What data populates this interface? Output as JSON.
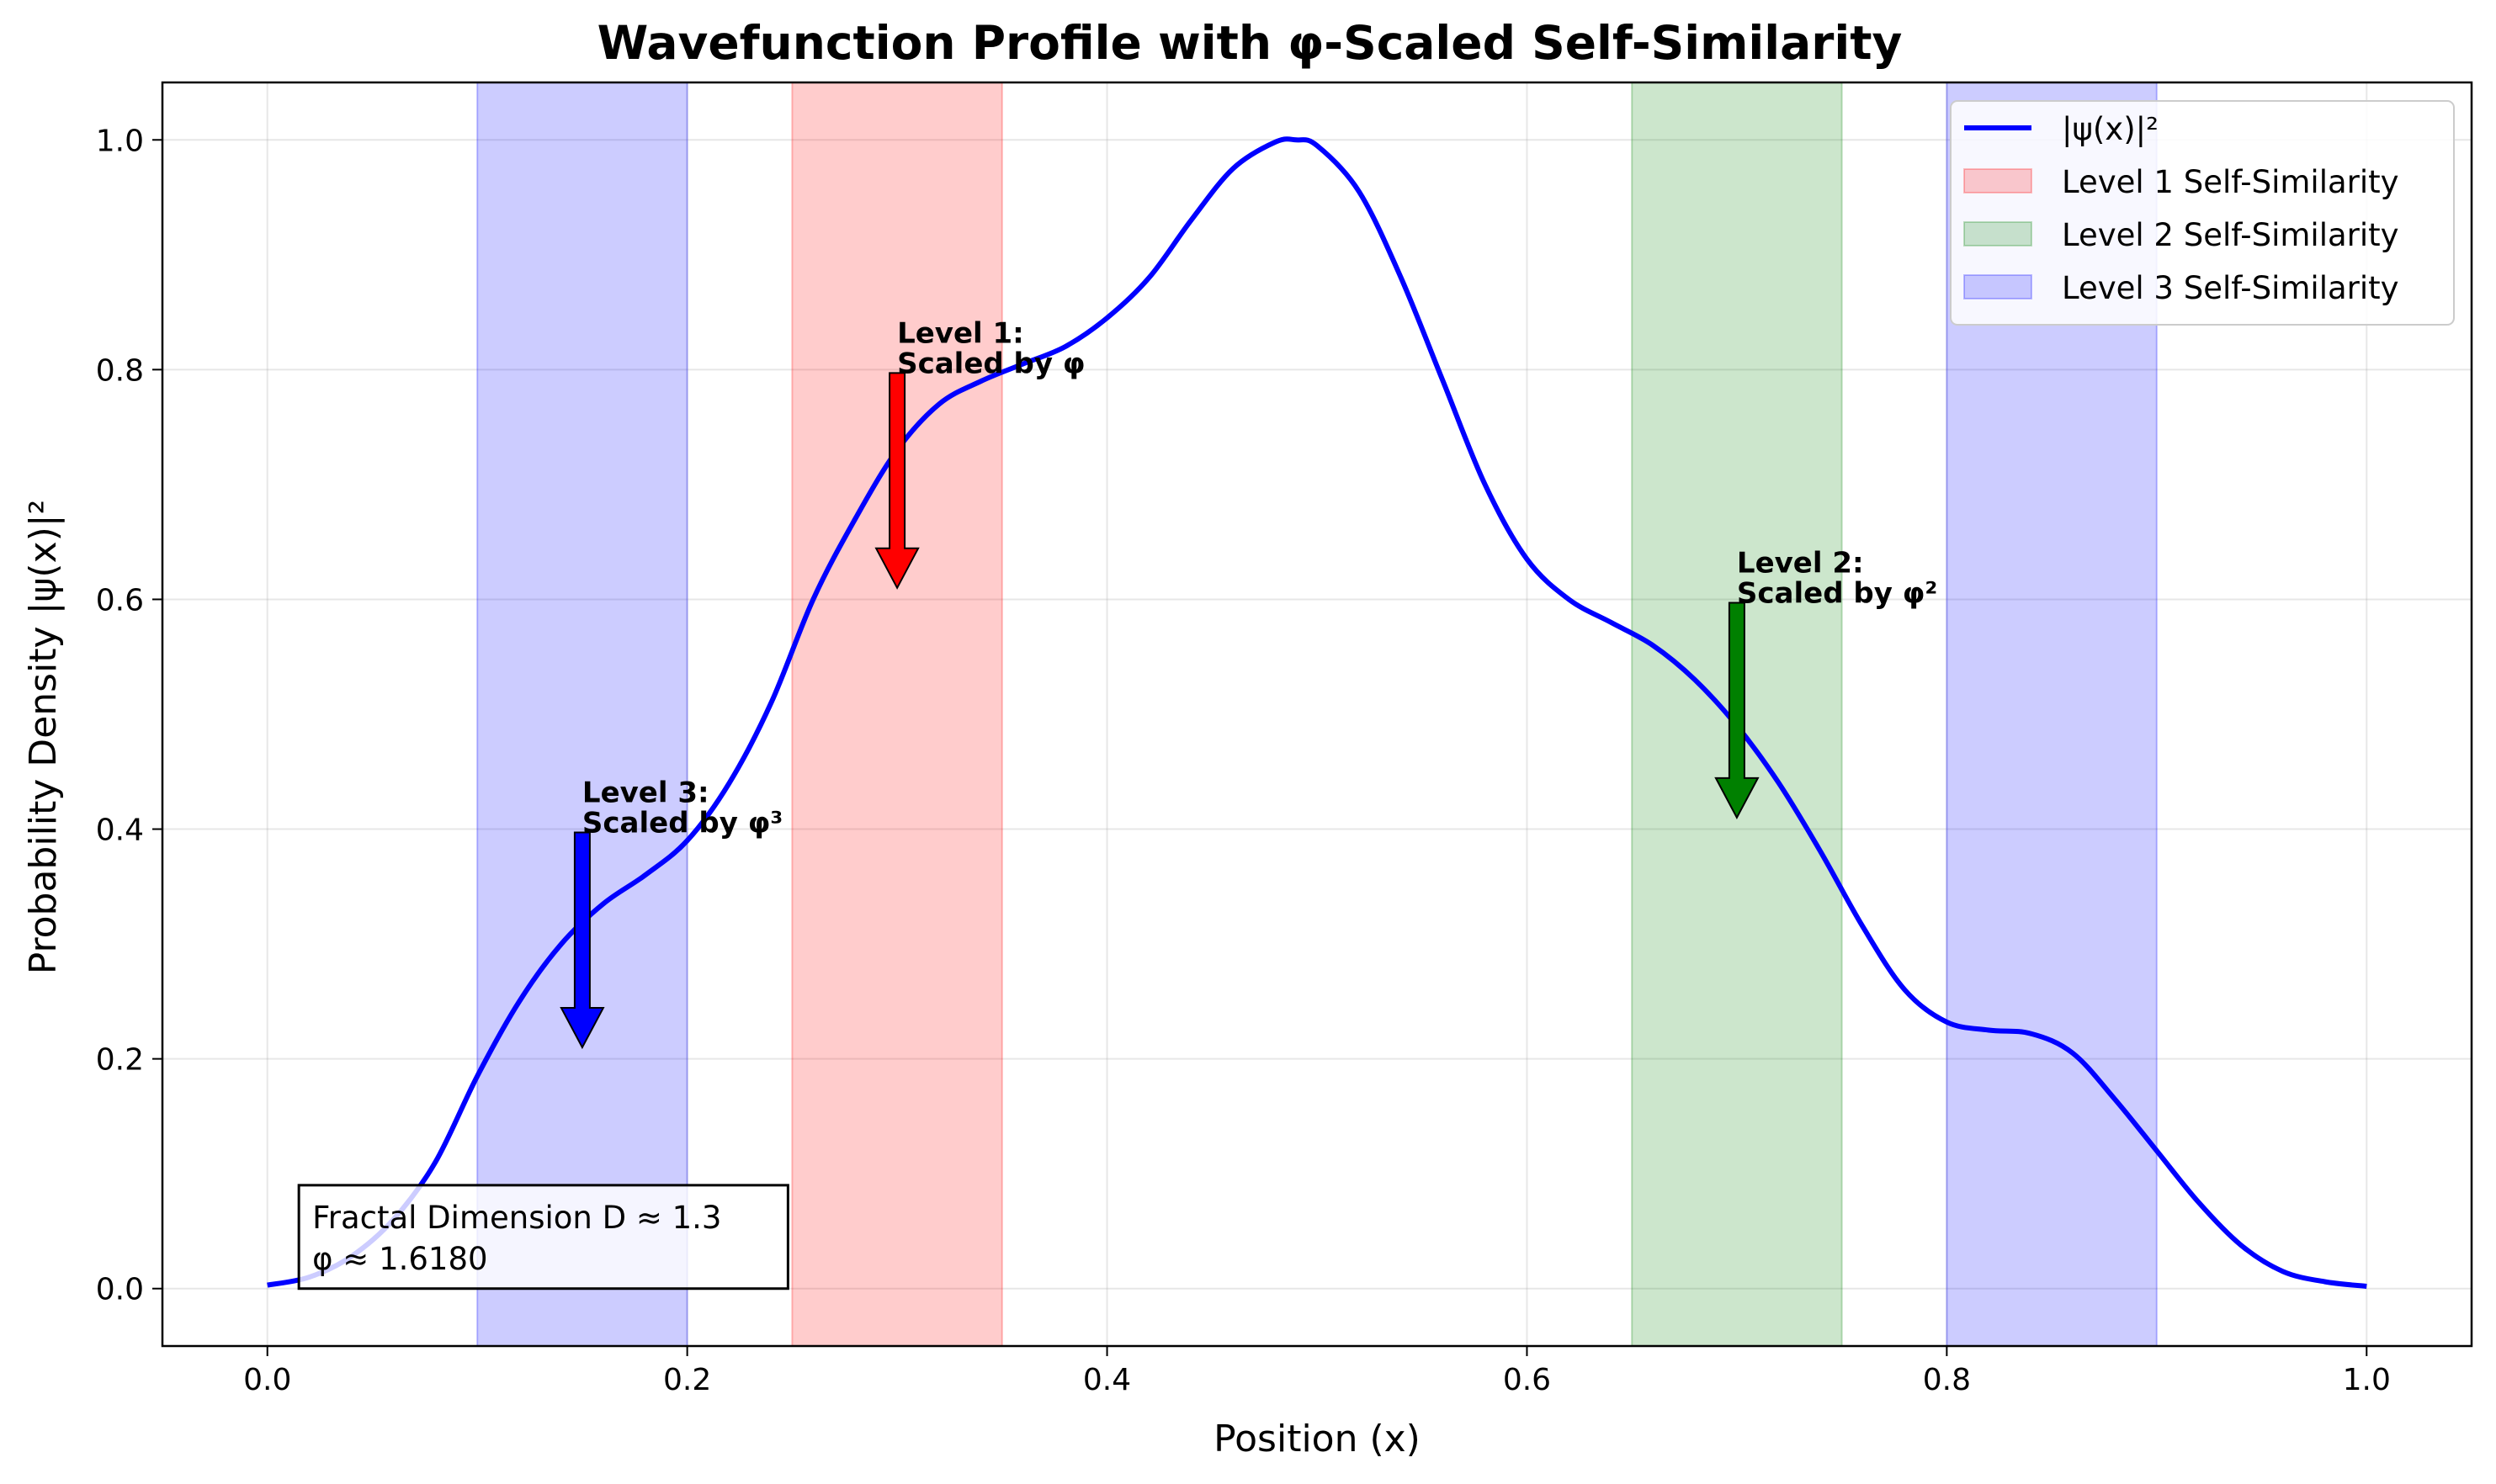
{
  "chart_data": {
    "type": "line",
    "title": "Wavefunction Profile with φ-Scaled Self-Similarity",
    "xlabel": "Position (x)",
    "ylabel": "Probability Density |ψ(x)|²",
    "xlim": [
      -0.05,
      1.05
    ],
    "ylim": [
      -0.05,
      1.05
    ],
    "xticks": [
      0.0,
      0.2,
      0.4,
      0.6,
      0.8,
      1.0
    ],
    "xtick_labels": [
      "0.0",
      "0.2",
      "0.4",
      "0.6",
      "0.8",
      "1.0"
    ],
    "yticks": [
      0.0,
      0.2,
      0.4,
      0.6,
      0.8,
      1.0
    ],
    "ytick_labels": [
      "0.0",
      "0.2",
      "0.4",
      "0.6",
      "0.8",
      "1.0"
    ],
    "grid": true,
    "legend_position": "top-right",
    "series": [
      {
        "name": "|ψ(x)|²",
        "color": "#0000ff",
        "x": [
          0.0,
          0.02,
          0.04,
          0.06,
          0.08,
          0.1,
          0.12,
          0.14,
          0.16,
          0.18,
          0.2,
          0.22,
          0.24,
          0.26,
          0.28,
          0.3,
          0.32,
          0.34,
          0.36,
          0.38,
          0.4,
          0.42,
          0.44,
          0.46,
          0.48,
          0.49,
          0.5,
          0.52,
          0.54,
          0.56,
          0.58,
          0.6,
          0.62,
          0.64,
          0.66,
          0.68,
          0.7,
          0.72,
          0.74,
          0.76,
          0.78,
          0.8,
          0.82,
          0.84,
          0.86,
          0.88,
          0.9,
          0.92,
          0.94,
          0.96,
          0.98,
          1.0
        ],
        "y": [
          0.003,
          0.01,
          0.028,
          0.06,
          0.11,
          0.185,
          0.25,
          0.3,
          0.335,
          0.36,
          0.39,
          0.44,
          0.51,
          0.6,
          0.67,
          0.73,
          0.77,
          0.79,
          0.805,
          0.82,
          0.845,
          0.88,
          0.93,
          0.975,
          0.998,
          1.0,
          0.995,
          0.955,
          0.88,
          0.79,
          0.7,
          0.635,
          0.6,
          0.58,
          0.56,
          0.53,
          0.49,
          0.44,
          0.38,
          0.315,
          0.26,
          0.232,
          0.225,
          0.222,
          0.205,
          0.165,
          0.12,
          0.075,
          0.038,
          0.015,
          0.006,
          0.002
        ]
      }
    ],
    "bands": [
      {
        "name": "Level 1 Self-Similarity",
        "x0": 0.25,
        "x1": 0.35,
        "color": "#ff0000",
        "alpha": 0.2
      },
      {
        "name": "Level 2 Self-Similarity",
        "x0": 0.65,
        "x1": 0.75,
        "color": "#008000",
        "alpha": 0.2
      },
      {
        "name": "Level 3 Self-Similarity",
        "x0": 0.1,
        "x1": 0.2,
        "color": "#0000ff",
        "alpha": 0.2
      },
      {
        "name": "Level 3 Self-Similarity",
        "x0": 0.8,
        "x1": 0.9,
        "color": "#0000ff",
        "alpha": 0.2
      }
    ],
    "legend": [
      {
        "label": "|ψ(x)|²",
        "kind": "line",
        "color": "#0000ff"
      },
      {
        "label": "Level 1 Self-Similarity",
        "kind": "patch",
        "color": "#ff0000"
      },
      {
        "label": "Level 2 Self-Similarity",
        "kind": "patch",
        "color": "#008000"
      },
      {
        "label": "Level 3 Self-Similarity",
        "kind": "patch",
        "color": "#0000ff"
      }
    ],
    "annotations": [
      {
        "line1": "Level 1:",
        "line2": "Scaled by φ",
        "x": 0.3,
        "y_text": 0.8,
        "y_tip": 0.61,
        "color": "#ff0000"
      },
      {
        "line1": "Level 2:",
        "line2": "Scaled by φ²",
        "x": 0.7,
        "y_text": 0.6,
        "y_tip": 0.41,
        "color": "#008000"
      },
      {
        "line1": "Level 3:",
        "line2": "Scaled by φ³",
        "x": 0.15,
        "y_text": 0.4,
        "y_tip": 0.21,
        "color": "#0000ff"
      }
    ],
    "info_box": {
      "line1": "Fractal Dimension D ≈ 1.3",
      "line2": "φ ≈ 1.6180"
    }
  }
}
